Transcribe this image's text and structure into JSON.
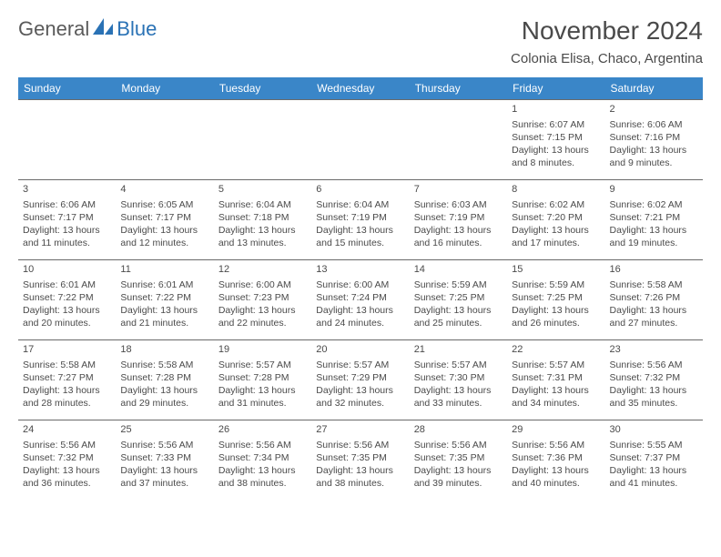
{
  "logo": {
    "text1": "General",
    "text2": "Blue"
  },
  "title": "November 2024",
  "location": "Colonia Elisa, Chaco, Argentina",
  "colors": {
    "header_bg": "#3a86c8",
    "header_text": "#ffffff",
    "text": "#4a4a4a",
    "logo_blue": "#2a72b5",
    "border": "#6a6a6a"
  },
  "weekdays": [
    "Sunday",
    "Monday",
    "Tuesday",
    "Wednesday",
    "Thursday",
    "Friday",
    "Saturday"
  ],
  "weeks": [
    [
      null,
      null,
      null,
      null,
      null,
      {
        "n": "1",
        "sr": "Sunrise: 6:07 AM",
        "ss": "Sunset: 7:15 PM",
        "dl1": "Daylight: 13 hours",
        "dl2": "and 8 minutes."
      },
      {
        "n": "2",
        "sr": "Sunrise: 6:06 AM",
        "ss": "Sunset: 7:16 PM",
        "dl1": "Daylight: 13 hours",
        "dl2": "and 9 minutes."
      }
    ],
    [
      {
        "n": "3",
        "sr": "Sunrise: 6:06 AM",
        "ss": "Sunset: 7:17 PM",
        "dl1": "Daylight: 13 hours",
        "dl2": "and 11 minutes."
      },
      {
        "n": "4",
        "sr": "Sunrise: 6:05 AM",
        "ss": "Sunset: 7:17 PM",
        "dl1": "Daylight: 13 hours",
        "dl2": "and 12 minutes."
      },
      {
        "n": "5",
        "sr": "Sunrise: 6:04 AM",
        "ss": "Sunset: 7:18 PM",
        "dl1": "Daylight: 13 hours",
        "dl2": "and 13 minutes."
      },
      {
        "n": "6",
        "sr": "Sunrise: 6:04 AM",
        "ss": "Sunset: 7:19 PM",
        "dl1": "Daylight: 13 hours",
        "dl2": "and 15 minutes."
      },
      {
        "n": "7",
        "sr": "Sunrise: 6:03 AM",
        "ss": "Sunset: 7:19 PM",
        "dl1": "Daylight: 13 hours",
        "dl2": "and 16 minutes."
      },
      {
        "n": "8",
        "sr": "Sunrise: 6:02 AM",
        "ss": "Sunset: 7:20 PM",
        "dl1": "Daylight: 13 hours",
        "dl2": "and 17 minutes."
      },
      {
        "n": "9",
        "sr": "Sunrise: 6:02 AM",
        "ss": "Sunset: 7:21 PM",
        "dl1": "Daylight: 13 hours",
        "dl2": "and 19 minutes."
      }
    ],
    [
      {
        "n": "10",
        "sr": "Sunrise: 6:01 AM",
        "ss": "Sunset: 7:22 PM",
        "dl1": "Daylight: 13 hours",
        "dl2": "and 20 minutes."
      },
      {
        "n": "11",
        "sr": "Sunrise: 6:01 AM",
        "ss": "Sunset: 7:22 PM",
        "dl1": "Daylight: 13 hours",
        "dl2": "and 21 minutes."
      },
      {
        "n": "12",
        "sr": "Sunrise: 6:00 AM",
        "ss": "Sunset: 7:23 PM",
        "dl1": "Daylight: 13 hours",
        "dl2": "and 22 minutes."
      },
      {
        "n": "13",
        "sr": "Sunrise: 6:00 AM",
        "ss": "Sunset: 7:24 PM",
        "dl1": "Daylight: 13 hours",
        "dl2": "and 24 minutes."
      },
      {
        "n": "14",
        "sr": "Sunrise: 5:59 AM",
        "ss": "Sunset: 7:25 PM",
        "dl1": "Daylight: 13 hours",
        "dl2": "and 25 minutes."
      },
      {
        "n": "15",
        "sr": "Sunrise: 5:59 AM",
        "ss": "Sunset: 7:25 PM",
        "dl1": "Daylight: 13 hours",
        "dl2": "and 26 minutes."
      },
      {
        "n": "16",
        "sr": "Sunrise: 5:58 AM",
        "ss": "Sunset: 7:26 PM",
        "dl1": "Daylight: 13 hours",
        "dl2": "and 27 minutes."
      }
    ],
    [
      {
        "n": "17",
        "sr": "Sunrise: 5:58 AM",
        "ss": "Sunset: 7:27 PM",
        "dl1": "Daylight: 13 hours",
        "dl2": "and 28 minutes."
      },
      {
        "n": "18",
        "sr": "Sunrise: 5:58 AM",
        "ss": "Sunset: 7:28 PM",
        "dl1": "Daylight: 13 hours",
        "dl2": "and 29 minutes."
      },
      {
        "n": "19",
        "sr": "Sunrise: 5:57 AM",
        "ss": "Sunset: 7:28 PM",
        "dl1": "Daylight: 13 hours",
        "dl2": "and 31 minutes."
      },
      {
        "n": "20",
        "sr": "Sunrise: 5:57 AM",
        "ss": "Sunset: 7:29 PM",
        "dl1": "Daylight: 13 hours",
        "dl2": "and 32 minutes."
      },
      {
        "n": "21",
        "sr": "Sunrise: 5:57 AM",
        "ss": "Sunset: 7:30 PM",
        "dl1": "Daylight: 13 hours",
        "dl2": "and 33 minutes."
      },
      {
        "n": "22",
        "sr": "Sunrise: 5:57 AM",
        "ss": "Sunset: 7:31 PM",
        "dl1": "Daylight: 13 hours",
        "dl2": "and 34 minutes."
      },
      {
        "n": "23",
        "sr": "Sunrise: 5:56 AM",
        "ss": "Sunset: 7:32 PM",
        "dl1": "Daylight: 13 hours",
        "dl2": "and 35 minutes."
      }
    ],
    [
      {
        "n": "24",
        "sr": "Sunrise: 5:56 AM",
        "ss": "Sunset: 7:32 PM",
        "dl1": "Daylight: 13 hours",
        "dl2": "and 36 minutes."
      },
      {
        "n": "25",
        "sr": "Sunrise: 5:56 AM",
        "ss": "Sunset: 7:33 PM",
        "dl1": "Daylight: 13 hours",
        "dl2": "and 37 minutes."
      },
      {
        "n": "26",
        "sr": "Sunrise: 5:56 AM",
        "ss": "Sunset: 7:34 PM",
        "dl1": "Daylight: 13 hours",
        "dl2": "and 38 minutes."
      },
      {
        "n": "27",
        "sr": "Sunrise: 5:56 AM",
        "ss": "Sunset: 7:35 PM",
        "dl1": "Daylight: 13 hours",
        "dl2": "and 38 minutes."
      },
      {
        "n": "28",
        "sr": "Sunrise: 5:56 AM",
        "ss": "Sunset: 7:35 PM",
        "dl1": "Daylight: 13 hours",
        "dl2": "and 39 minutes."
      },
      {
        "n": "29",
        "sr": "Sunrise: 5:56 AM",
        "ss": "Sunset: 7:36 PM",
        "dl1": "Daylight: 13 hours",
        "dl2": "and 40 minutes."
      },
      {
        "n": "30",
        "sr": "Sunrise: 5:55 AM",
        "ss": "Sunset: 7:37 PM",
        "dl1": "Daylight: 13 hours",
        "dl2": "and 41 minutes."
      }
    ]
  ]
}
